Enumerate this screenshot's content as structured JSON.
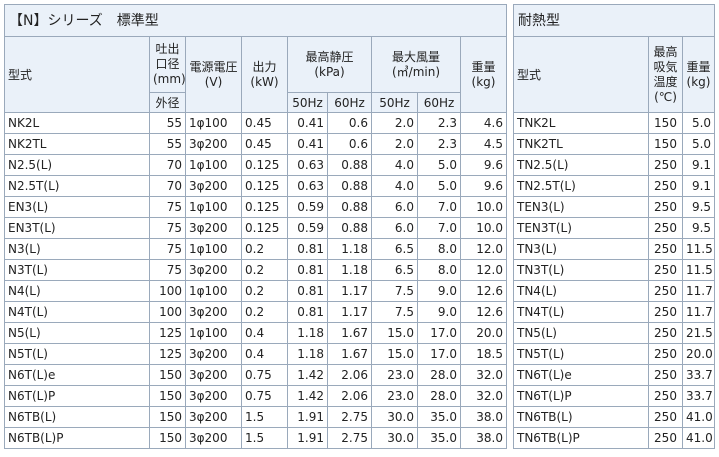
{
  "standard": {
    "title": "【N】シリーズ　標準型",
    "headers": {
      "model": "型式",
      "outlet": "吐出口径(mm)",
      "outlet_sub": "外径",
      "power_supply": "電源電圧(V)",
      "output": "出力(kW)",
      "pressure": "最高静圧(kPa)",
      "airflow": "最大風量(㎥/min)",
      "weight": "重量(kg)",
      "hz50": "50Hz",
      "hz60": "60Hz"
    },
    "rows": [
      [
        "NK2L",
        "55",
        "1φ100",
        "0.45",
        "0.41",
        "0.6",
        "2.0",
        "2.3",
        "4.6"
      ],
      [
        "NK2TL",
        "55",
        "3φ200",
        "0.45",
        "0.41",
        "0.6",
        "2.0",
        "2.3",
        "4.5"
      ],
      [
        "N2.5(L)",
        "70",
        "1φ100",
        "0.125",
        "0.63",
        "0.88",
        "4.0",
        "5.0",
        "9.6"
      ],
      [
        "N2.5T(L)",
        "70",
        "3φ200",
        "0.125",
        "0.63",
        "0.88",
        "4.0",
        "5.0",
        "9.6"
      ],
      [
        "EN3(L)",
        "75",
        "1φ100",
        "0.125",
        "0.59",
        "0.88",
        "6.0",
        "7.0",
        "10.0"
      ],
      [
        "EN3T(L)",
        "75",
        "3φ200",
        "0.125",
        "0.59",
        "0.88",
        "6.0",
        "7.0",
        "10.0"
      ],
      [
        "N3(L)",
        "75",
        "1φ100",
        "0.2",
        "0.81",
        "1.18",
        "6.5",
        "8.0",
        "12.0"
      ],
      [
        "N3T(L)",
        "75",
        "3φ200",
        "0.2",
        "0.81",
        "1.18",
        "6.5",
        "8.0",
        "12.0"
      ],
      [
        "N4(L)",
        "100",
        "1φ100",
        "0.2",
        "0.81",
        "1.17",
        "7.5",
        "9.0",
        "12.6"
      ],
      [
        "N4T(L)",
        "100",
        "3φ200",
        "0.2",
        "0.81",
        "1.17",
        "7.5",
        "9.0",
        "12.6"
      ],
      [
        "N5(L)",
        "125",
        "1φ100",
        "0.4",
        "1.18",
        "1.67",
        "15.0",
        "17.0",
        "20.0"
      ],
      [
        "N5T(L)",
        "125",
        "3φ200",
        "0.4",
        "1.18",
        "1.67",
        "15.0",
        "17.0",
        "18.5"
      ],
      [
        "N6T(L)e",
        "150",
        "3φ200",
        "0.75",
        "1.42",
        "2.06",
        "23.0",
        "28.0",
        "32.0"
      ],
      [
        "N6T(L)P",
        "150",
        "3φ200",
        "0.75",
        "1.42",
        "2.06",
        "23.0",
        "28.0",
        "32.0"
      ],
      [
        "N6TB(L)",
        "150",
        "3φ200",
        "1.5",
        "1.91",
        "2.75",
        "30.0",
        "35.0",
        "38.0"
      ],
      [
        "N6TB(L)P",
        "150",
        "3φ200",
        "1.5",
        "1.91",
        "2.75",
        "30.0",
        "35.0",
        "38.0"
      ]
    ]
  },
  "heat": {
    "title": "耐熱型",
    "headers": {
      "model": "型式",
      "temp": "最高吸気温度(℃)",
      "weight": "重量(kg)"
    },
    "rows": [
      [
        "TNK2L",
        "150",
        "5.0"
      ],
      [
        "TNK2TL",
        "150",
        "5.0"
      ],
      [
        "TN2.5(L)",
        "250",
        "9.1"
      ],
      [
        "TN2.5T(L)",
        "250",
        "9.1"
      ],
      [
        "TEN3(L)",
        "250",
        "9.5"
      ],
      [
        "TEN3T(L)",
        "250",
        "9.5"
      ],
      [
        "TN3(L)",
        "250",
        "11.5"
      ],
      [
        "TN3T(L)",
        "250",
        "11.5"
      ],
      [
        "TN4(L)",
        "250",
        "11.7"
      ],
      [
        "TN4T(L)",
        "250",
        "11.7"
      ],
      [
        "TN5(L)",
        "250",
        "21.5"
      ],
      [
        "TN5T(L)",
        "250",
        "20.0"
      ],
      [
        "TN6T(L)e",
        "250",
        "33.7"
      ],
      [
        "TN6T(L)P",
        "250",
        "33.7"
      ],
      [
        "TN6TB(L)",
        "250",
        "41.0"
      ],
      [
        "TN6TB(L)P",
        "250",
        "41.0"
      ]
    ]
  },
  "colors": {
    "header_bg": "#eaf1f9",
    "border": "#9aa9bb"
  }
}
